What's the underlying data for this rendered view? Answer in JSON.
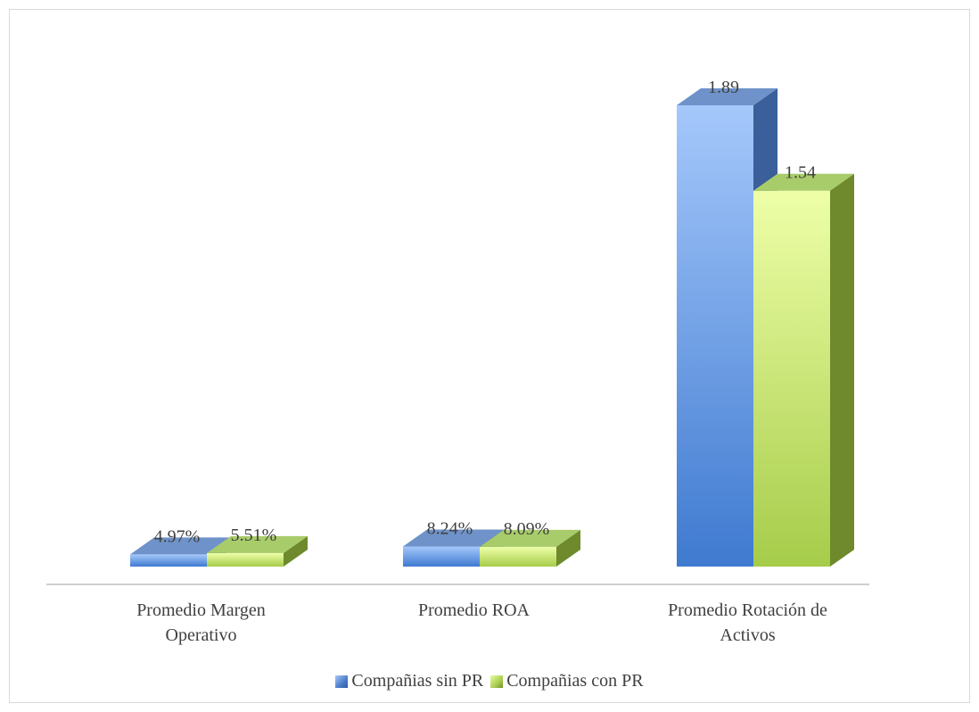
{
  "chart_data": {
    "type": "bar",
    "title": "",
    "xlabel": "",
    "ylabel": "",
    "categories": [
      [
        "Promedio Margen",
        "Operativo"
      ],
      [
        "Promedio ROA"
      ],
      [
        "Promedio Rotación de",
        "Activos"
      ]
    ],
    "series": [
      {
        "name": "Compañias sin PR",
        "values": [
          0.0497,
          0.0824,
          1.89
        ],
        "labels": [
          "4.97%",
          "8.24%",
          "1.89"
        ]
      },
      {
        "name": "Compañias con PR",
        "values": [
          0.0551,
          0.0809,
          1.54
        ],
        "labels": [
          "5.51%",
          "8.09%",
          "1.54"
        ]
      }
    ],
    "ylim": [
      0,
      1.89
    ],
    "grid": false,
    "legend": "bottom",
    "style_3d": true
  },
  "colors": {
    "series0_front_top": "#a5c8fb",
    "series0_front_bottom": "#3f7ad0",
    "series0_side": "#3a5f9a",
    "series0_top": "#6e92c9",
    "series1_front_top": "#eeffa8",
    "series1_front_bottom": "#a6cc4a",
    "series1_side": "#6e8a2c",
    "series1_top": "#a8cc6a",
    "axis": "#bfbfbf",
    "text": "#404040"
  }
}
